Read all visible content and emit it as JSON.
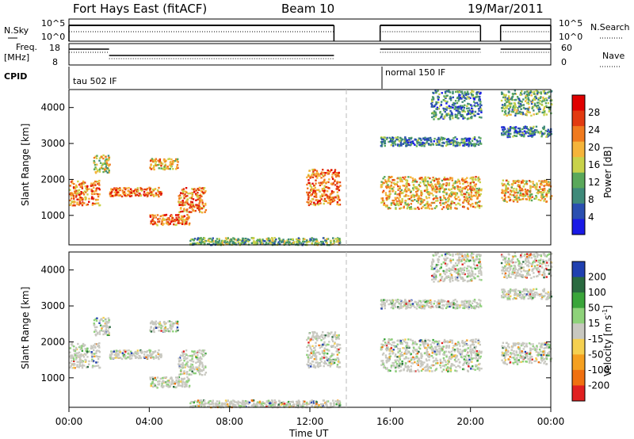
{
  "header": {
    "station": "Fort Hays East (fitACF)",
    "beam": "Beam 10",
    "date": "19/Mar/2011"
  },
  "params": {
    "nsky_label": "N.Sky",
    "nsky_ticks": [
      "10^5",
      "10^0"
    ],
    "nsearch_label": "N.Search",
    "nsearch_ticks": [
      "10^5",
      "10^0"
    ],
    "freq_label": "Freq.",
    "freq_unit": "[MHz]",
    "freq_ticks": [
      "18",
      "8"
    ],
    "nave_label": "Nave",
    "nave_ticks": [
      "60",
      "0"
    ],
    "cpid_label": "CPID",
    "cpid_segments": [
      {
        "label": "tau 502 IF"
      },
      {
        "label": "normal 150 IF"
      }
    ]
  },
  "x_axis": {
    "label": "Time UT",
    "ticks": [
      "00:00",
      "04:00",
      "08:00",
      "12:00",
      "16:00",
      "20:00",
      "00:00"
    ]
  },
  "power_panel": {
    "ylabel": "Slant Range [km]",
    "yticks": [
      "1000",
      "2000",
      "3000",
      "4000"
    ],
    "colorbar_label": "Power [dB]",
    "colorbar_ticks": [
      "4",
      "8",
      "12",
      "16",
      "20",
      "24",
      "28"
    ],
    "colors": [
      "#1a1ae6",
      "#2a4fb0",
      "#3f8a7a",
      "#5aa85a",
      "#c8d24a",
      "#f5b43a",
      "#f07a1e",
      "#e23a10",
      "#e00000"
    ]
  },
  "velocity_panel": {
    "ylabel": "Slant Range [km]",
    "yticks": [
      "1000",
      "2000",
      "3000",
      "4000"
    ],
    "colorbar_label": "Velocity [m s",
    "colorbar_sup": "-1",
    "colorbar_label_end": "]",
    "colorbar_ticks": [
      "200",
      "100",
      "50",
      "15",
      "-15",
      "-50",
      "-100",
      "-200"
    ],
    "colors": [
      "#2040b0",
      "#2a6a40",
      "#3aa53a",
      "#8ed27a",
      "#c8c8c0",
      "#f5d050",
      "#f5a020",
      "#f07010",
      "#e02020"
    ]
  },
  "chart_data": {
    "type": "heatmap",
    "x_range_hours": [
      0,
      24
    ],
    "y_range_km": [
      180,
      4500
    ],
    "data_gap_hours": [
      13.6,
      15.5
    ],
    "power_echo_regions": [
      {
        "t": [
          0.0,
          1.5
        ],
        "range_km": [
          1300,
          2000
        ],
        "level_db": 24
      },
      {
        "t": [
          1.2,
          2.0
        ],
        "range_km": [
          2200,
          2700
        ],
        "level_db": 14
      },
      {
        "t": [
          2.0,
          4.6
        ],
        "range_km": [
          1550,
          1800
        ],
        "level_db": 22
      },
      {
        "t": [
          4.0,
          5.4
        ],
        "range_km": [
          2300,
          2600
        ],
        "level_db": 20
      },
      {
        "t": [
          4.0,
          6.0
        ],
        "range_km": [
          750,
          1050
        ],
        "level_db": 24
      },
      {
        "t": [
          5.4,
          6.8
        ],
        "range_km": [
          1100,
          1800
        ],
        "level_db": 22
      },
      {
        "t": [
          6.0,
          13.5
        ],
        "range_km": [
          200,
          400
        ],
        "level_db": 10
      },
      {
        "t": [
          11.8,
          13.5
        ],
        "range_km": [
          1300,
          2300
        ],
        "level_db": 24
      },
      {
        "t": [
          15.5,
          20.5
        ],
        "range_km": [
          1200,
          2100
        ],
        "level_db": 20
      },
      {
        "t": [
          15.5,
          20.5
        ],
        "range_km": [
          2950,
          3200
        ],
        "level_db": 6
      },
      {
        "t": [
          18.0,
          20.5
        ],
        "range_km": [
          3700,
          4500
        ],
        "level_db": 6
      },
      {
        "t": [
          21.5,
          24.0
        ],
        "range_km": [
          1400,
          2000
        ],
        "level_db": 20
      },
      {
        "t": [
          21.5,
          24.0
        ],
        "range_km": [
          3200,
          3500
        ],
        "level_db": 8
      },
      {
        "t": [
          21.5,
          24.0
        ],
        "range_km": [
          3800,
          4500
        ],
        "level_db": 10
      }
    ],
    "velocity_note_ticks": [
      "200",
      "100",
      "50",
      "15",
      "-15",
      "-50",
      "-100",
      "-200"
    ]
  }
}
